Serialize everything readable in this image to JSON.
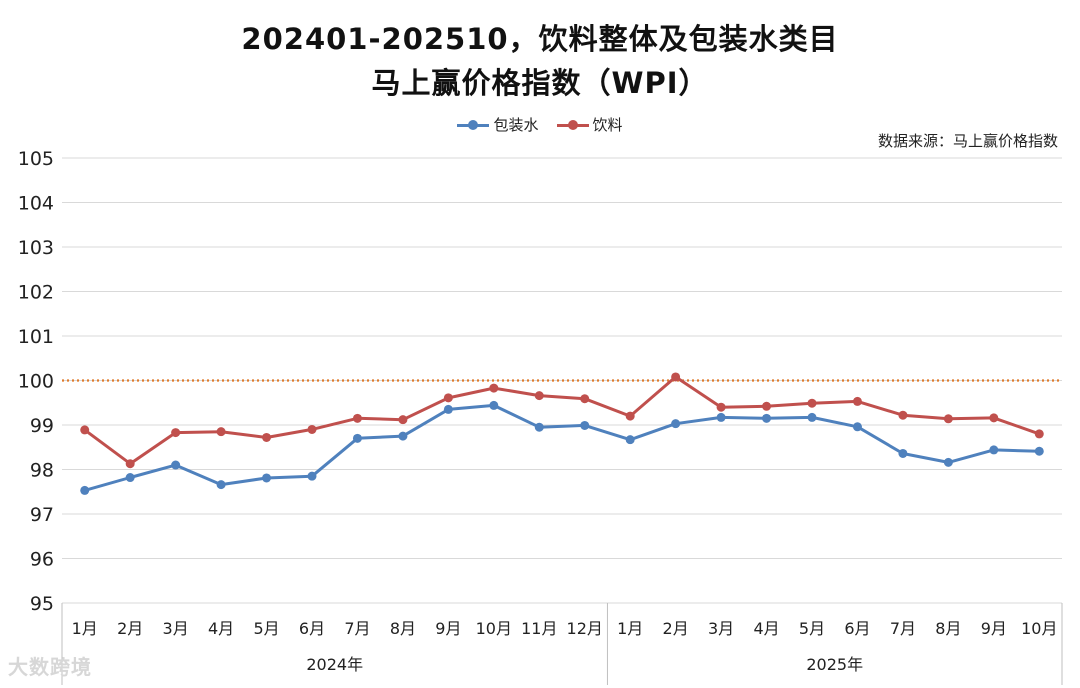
{
  "title_line1": "202401-202510，饮料整体及包装水类目",
  "title_line2": "马上赢价格指数（WPI）",
  "source": "数据来源：马上赢价格指数",
  "watermark": "大数跨境",
  "colors": {
    "packaged_water": "#4F81BD",
    "beverages": "#C0504D",
    "reference_line": "#E07B2B",
    "grid": "#D9D9D9",
    "axis": "#BFBFBF"
  },
  "chart_data": {
    "type": "line",
    "title": "202401-202510，饮料整体及包装水类目 马上赢价格指数（WPI）",
    "categories": [
      "1月",
      "2月",
      "3月",
      "4月",
      "5月",
      "6月",
      "7月",
      "8月",
      "9月",
      "10月",
      "11月",
      "12月",
      "1月",
      "2月",
      "3月",
      "4月",
      "5月",
      "6月",
      "7月",
      "8月",
      "9月",
      "10月"
    ],
    "year_groups": [
      {
        "label": "2024年",
        "count": 12
      },
      {
        "label": "2025年",
        "count": 10
      }
    ],
    "series": [
      {
        "name": "包装水",
        "color": "#4F81BD",
        "values": [
          97.53,
          97.82,
          98.1,
          97.66,
          97.81,
          97.85,
          98.7,
          98.75,
          99.35,
          99.44,
          98.95,
          98.99,
          98.67,
          99.03,
          99.17,
          99.15,
          99.17,
          98.96,
          98.36,
          98.16,
          98.44,
          98.41
        ]
      },
      {
        "name": "饮料",
        "color": "#C0504D",
        "values": [
          98.89,
          98.13,
          98.83,
          98.85,
          98.72,
          98.9,
          99.15,
          99.12,
          99.61,
          99.83,
          99.66,
          99.59,
          99.2,
          100.08,
          99.4,
          99.42,
          99.49,
          99.53,
          99.22,
          99.14,
          99.16,
          98.8
        ]
      }
    ],
    "reference_line": {
      "value": 100,
      "style": "dotted"
    },
    "ylim": [
      95,
      105
    ],
    "yticks": [
      95,
      96,
      97,
      98,
      99,
      100,
      101,
      102,
      103,
      104,
      105
    ],
    "xlabel": "",
    "ylabel": "",
    "grid": true,
    "legend": "top-center"
  }
}
